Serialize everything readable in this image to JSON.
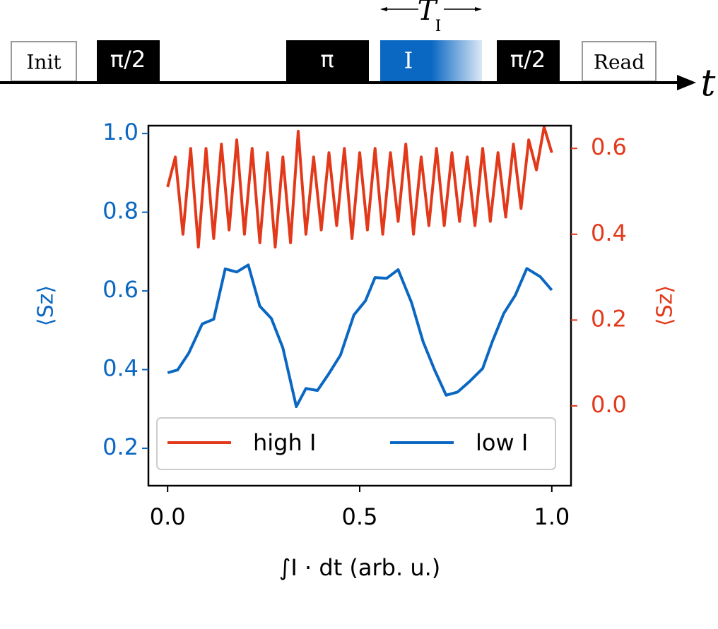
{
  "pulse_sequence": {
    "boxes": [
      "Init",
      "π/2",
      "π",
      "I",
      "π/2",
      "Read"
    ],
    "time_axis": "t",
    "duration_symbol": "T",
    "duration_subscript": "I"
  },
  "chart_data": {
    "type": "line",
    "xlabel": "∫I · dt (arb. u.)",
    "ylabel": "⟨Sz⟩",
    "y2label": "⟨Sz⟩",
    "xlim": [
      -0.05,
      1.05
    ],
    "ylim": [
      0.105,
      1.02
    ],
    "y2lim": [
      -0.186,
      0.653
    ],
    "xticks": [
      {
        "value": 0,
        "label": "0.0"
      },
      {
        "value": 0.5,
        "label": "0.5"
      },
      {
        "value": 1,
        "label": "1.0"
      }
    ],
    "yticks": [
      0.2,
      0.4,
      0.6,
      0.8,
      {
        "value": 1,
        "label": "1.0"
      }
    ],
    "y2ticks": [
      {
        "value": 0,
        "label": "0.0"
      },
      0.2,
      0.4,
      0.6
    ],
    "legend": "lower center",
    "series": [
      {
        "name": "high I",
        "color": "#e2391b",
        "axis": "y2",
        "x": [
          0,
          0.02,
          0.04,
          0.06,
          0.08,
          0.1,
          0.12,
          0.14,
          0.16,
          0.18,
          0.2,
          0.22,
          0.24,
          0.26,
          0.28,
          0.3,
          0.32,
          0.34,
          0.36,
          0.38,
          0.4,
          0.42,
          0.44,
          0.46,
          0.48,
          0.5,
          0.52,
          0.54,
          0.56,
          0.58,
          0.6,
          0.62,
          0.64,
          0.66,
          0.68,
          0.7,
          0.72,
          0.74,
          0.76,
          0.78,
          0.8,
          0.82,
          0.84,
          0.86,
          0.88,
          0.9,
          0.92,
          0.94,
          0.96,
          0.98,
          1
        ],
        "values": [
          0.51,
          0.58,
          0.4,
          0.6,
          0.37,
          0.6,
          0.39,
          0.61,
          0.41,
          0.62,
          0.4,
          0.6,
          0.38,
          0.59,
          0.37,
          0.58,
          0.38,
          0.64,
          0.4,
          0.58,
          0.41,
          0.59,
          0.42,
          0.6,
          0.39,
          0.59,
          0.41,
          0.6,
          0.4,
          0.59,
          0.43,
          0.61,
          0.4,
          0.58,
          0.42,
          0.6,
          0.42,
          0.59,
          0.43,
          0.58,
          0.42,
          0.6,
          0.43,
          0.59,
          0.44,
          0.61,
          0.46,
          0.62,
          0.55,
          0.65,
          0.59
        ]
      },
      {
        "name": "low I",
        "color": "#0a67c2",
        "axis": "y",
        "x": [
          0,
          0.026,
          0.055,
          0.09,
          0.12,
          0.15,
          0.18,
          0.21,
          0.24,
          0.27,
          0.3,
          0.335,
          0.36,
          0.39,
          0.42,
          0.45,
          0.485,
          0.515,
          0.54,
          0.57,
          0.6,
          0.635,
          0.665,
          0.695,
          0.725,
          0.755,
          0.785,
          0.82,
          0.845,
          0.875,
          0.905,
          0.935,
          0.97,
          1
        ],
        "values": [
          0.392,
          0.399,
          0.442,
          0.516,
          0.528,
          0.656,
          0.648,
          0.666,
          0.561,
          0.53,
          0.455,
          0.306,
          0.352,
          0.347,
          0.39,
          0.437,
          0.539,
          0.575,
          0.634,
          0.632,
          0.654,
          0.57,
          0.471,
          0.399,
          0.335,
          0.343,
          0.369,
          0.403,
          0.471,
          0.543,
          0.589,
          0.657,
          0.636,
          0.602
        ]
      }
    ]
  }
}
